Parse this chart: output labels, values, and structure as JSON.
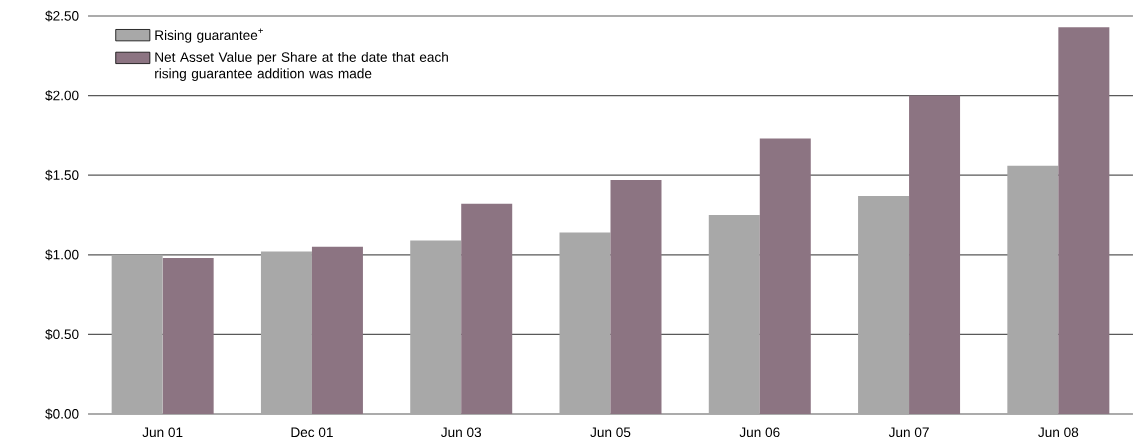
{
  "chart_data": {
    "type": "bar",
    "categories": [
      "Jun 01",
      "Dec 01",
      "Jun 03",
      "Jun 05",
      "Jun 06",
      "Jun 07",
      "Jun 08"
    ],
    "series": [
      {
        "name": "Rising guarantee$^{+}$",
        "color": "#a8a8a8",
        "values": [
          1.0,
          1.02,
          1.09,
          1.14,
          1.25,
          1.37,
          1.56
        ]
      },
      {
        "name": "Net Asset Value per Share at the date that each rising guarantee addition was made",
        "color": "#8c7482",
        "values": [
          0.98,
          1.05,
          1.32,
          1.47,
          1.73,
          2.0,
          2.43
        ]
      }
    ],
    "ylim": [
      0,
      2.5
    ],
    "yticks": [
      {
        "value": 0,
        "label": "$0.00"
      },
      {
        "value": 0.5,
        "label": "$0.50"
      },
      {
        "value": 1,
        "label": "$1.00"
      },
      {
        "value": 1.5,
        "label": "$1.50"
      },
      {
        "value": 2,
        "label": "$2.00"
      },
      {
        "value": 2.5,
        "label": "$2.50"
      }
    ],
    "grid": "y",
    "legend": "top left"
  }
}
